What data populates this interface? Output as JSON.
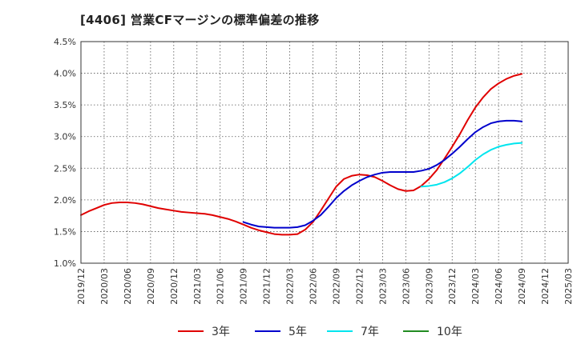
{
  "chart_data": {
    "type": "line",
    "title": "[4406]  営業CFマージンの標準偏差の推移",
    "xlabel": "",
    "ylabel": "",
    "ylim": [
      0.01,
      0.045
    ],
    "y_ticks": [
      0.01,
      0.015,
      0.02,
      0.025,
      0.03,
      0.035,
      0.04,
      0.045
    ],
    "y_tick_labels": [
      "1.0%",
      "1.5%",
      "2.0%",
      "2.5%",
      "3.0%",
      "3.5%",
      "4.0%",
      "4.5%"
    ],
    "x_tick_labels": [
      "2019/12",
      "2020/03",
      "2020/06",
      "2020/09",
      "2020/12",
      "2021/03",
      "2021/06",
      "2021/09",
      "2021/12",
      "2022/03",
      "2022/06",
      "2022/09",
      "2022/12",
      "2023/03",
      "2023/06",
      "2023/09",
      "2023/12",
      "2024/03",
      "2024/06",
      "2024/09",
      "2024/12",
      "2025/03"
    ],
    "grid": true,
    "legend_position": "bottom",
    "series": [
      {
        "name": "3年",
        "color": "#e00000",
        "x": [
          "2019/12",
          "2020/01",
          "2020/02",
          "2020/03",
          "2020/04",
          "2020/05",
          "2020/06",
          "2020/07",
          "2020/08",
          "2020/09",
          "2020/10",
          "2020/11",
          "2020/12",
          "2021/01",
          "2021/02",
          "2021/03",
          "2021/04",
          "2021/05",
          "2021/06",
          "2021/07",
          "2021/08",
          "2021/09",
          "2021/10",
          "2021/11",
          "2021/12",
          "2022/01",
          "2022/02",
          "2022/03",
          "2022/04",
          "2022/05",
          "2022/06",
          "2022/07",
          "2022/08",
          "2022/09",
          "2022/10",
          "2022/11",
          "2022/12",
          "2023/01",
          "2023/02",
          "2023/03",
          "2023/04",
          "2023/05",
          "2023/06",
          "2023/07",
          "2023/08",
          "2023/09",
          "2023/10",
          "2023/11",
          "2023/12",
          "2024/01",
          "2024/02",
          "2024/03",
          "2024/04",
          "2024/05",
          "2024/06",
          "2024/07",
          "2024/08",
          "2024/09"
        ],
        "values": [
          0.0176,
          0.0182,
          0.0187,
          0.0192,
          0.0195,
          0.0196,
          0.0196,
          0.0195,
          0.0193,
          0.019,
          0.0187,
          0.0185,
          0.0183,
          0.0181,
          0.018,
          0.0179,
          0.0178,
          0.0176,
          0.0173,
          0.017,
          0.0166,
          0.0161,
          0.0156,
          0.0152,
          0.0149,
          0.0146,
          0.0145,
          0.0145,
          0.0146,
          0.0153,
          0.0165,
          0.0183,
          0.0202,
          0.0221,
          0.0233,
          0.0238,
          0.024,
          0.0239,
          0.0236,
          0.023,
          0.0223,
          0.0217,
          0.0214,
          0.0215,
          0.0222,
          0.0233,
          0.0247,
          0.0265,
          0.0284,
          0.0304,
          0.0326,
          0.0346,
          0.0362,
          0.0375,
          0.0384,
          0.0391,
          0.0396,
          0.0399
        ]
      },
      {
        "name": "5年",
        "color": "#0000cc",
        "x": [
          "2021/09",
          "2021/10",
          "2021/11",
          "2021/12",
          "2022/01",
          "2022/02",
          "2022/03",
          "2022/04",
          "2022/05",
          "2022/06",
          "2022/07",
          "2022/08",
          "2022/09",
          "2022/10",
          "2022/11",
          "2022/12",
          "2023/01",
          "2023/02",
          "2023/03",
          "2023/04",
          "2023/05",
          "2023/06",
          "2023/07",
          "2023/08",
          "2023/09",
          "2023/10",
          "2023/11",
          "2023/12",
          "2024/01",
          "2024/02",
          "2024/03",
          "2024/04",
          "2024/05",
          "2024/06",
          "2024/07",
          "2024/08",
          "2024/09"
        ],
        "values": [
          0.0165,
          0.0161,
          0.0158,
          0.0157,
          0.0156,
          0.0156,
          0.0156,
          0.0157,
          0.016,
          0.0167,
          0.0176,
          0.0189,
          0.0203,
          0.0214,
          0.0223,
          0.023,
          0.0236,
          0.024,
          0.0243,
          0.0244,
          0.0244,
          0.0244,
          0.0244,
          0.0246,
          0.0249,
          0.0255,
          0.0263,
          0.0273,
          0.0284,
          0.0296,
          0.0307,
          0.0315,
          0.0321,
          0.0324,
          0.0325,
          0.0325,
          0.0324
        ]
      },
      {
        "name": "7年",
        "color": "#00e5ee",
        "x": [
          "2023/08",
          "2023/09",
          "2023/10",
          "2023/11",
          "2023/12",
          "2024/01",
          "2024/02",
          "2024/03",
          "2024/04",
          "2024/05",
          "2024/06",
          "2024/07",
          "2024/08",
          "2024/09"
        ],
        "values": [
          0.0221,
          0.0222,
          0.0224,
          0.0228,
          0.0234,
          0.0242,
          0.0252,
          0.0263,
          0.0272,
          0.0279,
          0.0284,
          0.0287,
          0.0289,
          0.029
        ]
      },
      {
        "name": "10年",
        "color": "#228b22",
        "x": [],
        "values": []
      }
    ]
  }
}
